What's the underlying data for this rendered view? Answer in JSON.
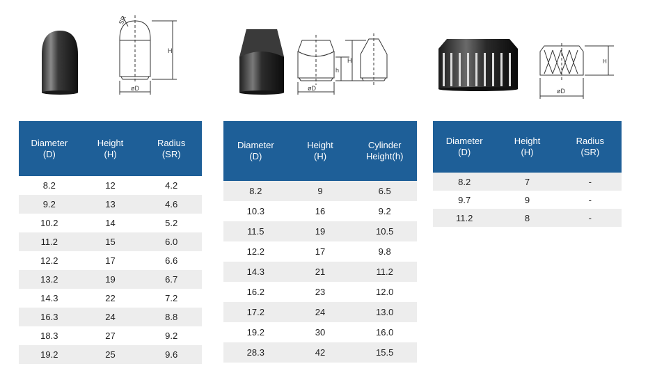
{
  "diagram_labels": {
    "sr": "SR",
    "h_big": "H",
    "h_small": "h",
    "dia": "øD"
  },
  "tables": [
    {
      "headers": [
        "Diameter\n(D)",
        "Height\n(H)",
        "Radius\n(SR)"
      ],
      "rows": [
        [
          "8.2",
          "12",
          "4.2"
        ],
        [
          "9.2",
          "13",
          "4.6"
        ],
        [
          "10.2",
          "14",
          "5.2"
        ],
        [
          "11.2",
          "15",
          "6.0"
        ],
        [
          "12.2",
          "17",
          "6.6"
        ],
        [
          "13.2",
          "19",
          "6.7"
        ],
        [
          "14.3",
          "22",
          "7.2"
        ],
        [
          "16.3",
          "24",
          "8.8"
        ],
        [
          "18.3",
          "27",
          "9.2"
        ],
        [
          "19.2",
          "25",
          "9.6"
        ]
      ]
    },
    {
      "headers": [
        "Diameter\n(D)",
        "Height\n(H)",
        "Cylinder\nHeight(h)"
      ],
      "rows": [
        [
          "8.2",
          "9",
          "6.5"
        ],
        [
          "10.3",
          "16",
          "9.2"
        ],
        [
          "11.5",
          "19",
          "10.5"
        ],
        [
          "12.2",
          "17",
          "9.8"
        ],
        [
          "14.3",
          "21",
          "11.2"
        ],
        [
          "16.2",
          "23",
          "12.0"
        ],
        [
          "17.2",
          "24",
          "13.0"
        ],
        [
          "19.2",
          "30",
          "16.0"
        ],
        [
          "28.3",
          "42",
          "15.5"
        ]
      ]
    },
    {
      "headers": [
        "Diameter\n(D)",
        "Height\n(H)",
        "Radius\n(SR)"
      ],
      "rows": [
        [
          "8.2",
          "7",
          "-"
        ],
        [
          "9.7",
          "9",
          "-"
        ],
        [
          "11.2",
          "8",
          "-"
        ]
      ]
    }
  ],
  "colors": {
    "header_bg": "#1e5f98",
    "stripe": "#ededed"
  }
}
